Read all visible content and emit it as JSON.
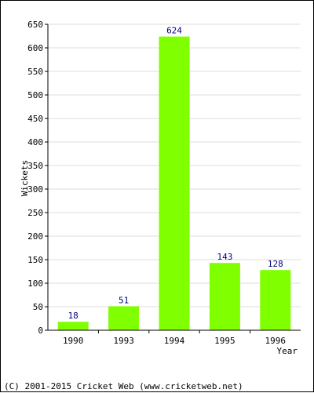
{
  "chart_data": {
    "type": "bar",
    "categories": [
      "1990",
      "1993",
      "1994",
      "1995",
      "1996"
    ],
    "values": [
      18,
      51,
      624,
      143,
      128
    ],
    "data_labels": [
      "18",
      "51",
      "624",
      "143",
      "128"
    ],
    "xlabel": "Year",
    "ylabel": "Wickets",
    "ylim": [
      0,
      650
    ],
    "yticks": [
      0,
      50,
      100,
      150,
      200,
      250,
      300,
      350,
      400,
      450,
      500,
      550,
      600,
      650
    ],
    "grid": "horizontal",
    "colors": {
      "bar": "#80ff00",
      "data_label": "#000080",
      "grid": "#dddddd",
      "axis": "#000000",
      "text": "#000000"
    }
  },
  "footer": {
    "copyright": "(C) 2001-2015 Cricket Web (www.cricketweb.net)"
  }
}
